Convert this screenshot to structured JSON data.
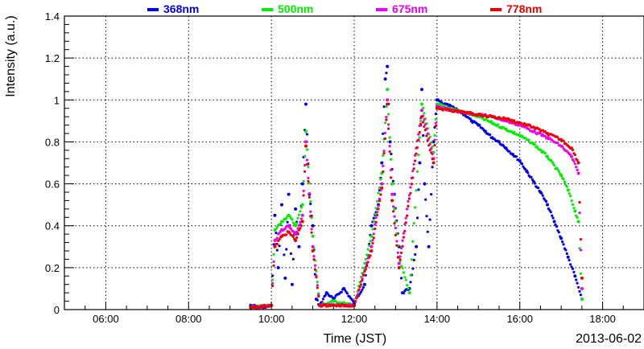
{
  "chart_data": {
    "type": "scatter",
    "xlabel": "Time (JST)",
    "ylabel": "Intensity (a.u.)",
    "date_label": "2013-06-02",
    "xlim": [
      "05:00",
      "19:00"
    ],
    "ylim": [
      0,
      1.4
    ],
    "x_ticks": [
      "06:00",
      "08:00",
      "10:00",
      "12:00",
      "14:00",
      "16:00",
      "18:00"
    ],
    "y_ticks": [
      "0",
      "0.2",
      "0.4",
      "0.6",
      "0.8",
      "1",
      "1.2",
      "1.4"
    ],
    "grid": true,
    "legend_position": "top",
    "series": [
      {
        "name": "368nm",
        "color": "#0000ee",
        "points": [
          [
            "09:30",
            0.02
          ],
          [
            "09:48",
            0.01
          ],
          [
            "10:00",
            0.02
          ],
          [
            "10:05",
            0.45
          ],
          [
            "10:10",
            0.2
          ],
          [
            "10:15",
            0.5
          ],
          [
            "10:20",
            0.15
          ],
          [
            "10:25",
            0.55
          ],
          [
            "10:30",
            0.12
          ],
          [
            "10:35",
            0.48
          ],
          [
            "10:40",
            0.3
          ],
          [
            "10:45",
            0.6
          ],
          [
            "10:50",
            0.98
          ],
          [
            "10:55",
            0.55
          ],
          [
            "11:00",
            0.4
          ],
          [
            "11:05",
            0.05
          ],
          [
            "11:10",
            0.02
          ],
          [
            "11:20",
            0.08
          ],
          [
            "11:30",
            0.05
          ],
          [
            "11:45",
            0.1
          ],
          [
            "12:00",
            0.03
          ],
          [
            "12:15",
            0.12
          ],
          [
            "12:25",
            0.4
          ],
          [
            "12:35",
            0.5
          ],
          [
            "12:40",
            0.7
          ],
          [
            "12:45",
            1.1
          ],
          [
            "12:48",
            1.16
          ],
          [
            "12:52",
            0.8
          ],
          [
            "12:58",
            0.55
          ],
          [
            "13:05",
            0.3
          ],
          [
            "13:10",
            0.08
          ],
          [
            "13:20",
            0.1
          ],
          [
            "13:30",
            0.3
          ],
          [
            "13:35",
            0.7
          ],
          [
            "13:38",
            1.05
          ],
          [
            "13:42",
            0.6
          ],
          [
            "13:48",
            0.3
          ],
          [
            "13:55",
            0.8
          ],
          [
            "14:00",
            1.0
          ],
          [
            "14:10",
            0.98
          ],
          [
            "14:20",
            0.97
          ],
          [
            "14:30",
            0.95
          ],
          [
            "14:40",
            0.93
          ],
          [
            "14:50",
            0.9
          ],
          [
            "15:00",
            0.88
          ],
          [
            "15:10",
            0.85
          ],
          [
            "15:20",
            0.82
          ],
          [
            "15:30",
            0.8
          ],
          [
            "15:40",
            0.77
          ],
          [
            "15:50",
            0.74
          ],
          [
            "16:00",
            0.71
          ],
          [
            "16:10",
            0.66
          ],
          [
            "16:20",
            0.61
          ],
          [
            "16:30",
            0.56
          ],
          [
            "16:40",
            0.5
          ],
          [
            "16:50",
            0.42
          ],
          [
            "17:00",
            0.34
          ],
          [
            "17:10",
            0.25
          ],
          [
            "17:20",
            0.16
          ],
          [
            "17:30",
            0.05
          ]
        ]
      },
      {
        "name": "500nm",
        "color": "#00ee00",
        "points": [
          [
            "09:30",
            0.01
          ],
          [
            "10:00",
            0.02
          ],
          [
            "10:05",
            0.38
          ],
          [
            "10:15",
            0.42
          ],
          [
            "10:25",
            0.45
          ],
          [
            "10:35",
            0.4
          ],
          [
            "10:45",
            0.5
          ],
          [
            "10:50",
            0.85
          ],
          [
            "11:00",
            0.35
          ],
          [
            "11:10",
            0.02
          ],
          [
            "11:30",
            0.04
          ],
          [
            "12:00",
            0.02
          ],
          [
            "12:25",
            0.35
          ],
          [
            "12:40",
            0.65
          ],
          [
            "12:48",
            1.05
          ],
          [
            "12:55",
            0.6
          ],
          [
            "13:05",
            0.25
          ],
          [
            "13:20",
            0.08
          ],
          [
            "13:38",
            0.98
          ],
          [
            "13:55",
            0.75
          ],
          [
            "14:00",
            0.98
          ],
          [
            "14:20",
            0.96
          ],
          [
            "14:40",
            0.94
          ],
          [
            "15:00",
            0.92
          ],
          [
            "15:20",
            0.89
          ],
          [
            "15:40",
            0.86
          ],
          [
            "16:00",
            0.83
          ],
          [
            "16:20",
            0.79
          ],
          [
            "16:40",
            0.73
          ],
          [
            "17:00",
            0.64
          ],
          [
            "17:10",
            0.57
          ],
          [
            "17:20",
            0.47
          ],
          [
            "17:25",
            0.42
          ],
          [
            "17:30",
            0.05
          ]
        ]
      },
      {
        "name": "675nm",
        "color": "#ee00ee",
        "points": [
          [
            "09:30",
            0.01
          ],
          [
            "10:00",
            0.02
          ],
          [
            "10:05",
            0.33
          ],
          [
            "10:15",
            0.38
          ],
          [
            "10:25",
            0.4
          ],
          [
            "10:35",
            0.36
          ],
          [
            "10:45",
            0.45
          ],
          [
            "10:50",
            0.8
          ],
          [
            "11:00",
            0.3
          ],
          [
            "11:10",
            0.02
          ],
          [
            "12:00",
            0.02
          ],
          [
            "12:25",
            0.3
          ],
          [
            "12:40",
            0.6
          ],
          [
            "12:48",
            1.0
          ],
          [
            "12:55",
            0.55
          ],
          [
            "13:05",
            0.22
          ],
          [
            "13:38",
            0.95
          ],
          [
            "13:55",
            0.72
          ],
          [
            "14:00",
            0.97
          ],
          [
            "14:20",
            0.95
          ],
          [
            "14:40",
            0.94
          ],
          [
            "15:00",
            0.93
          ],
          [
            "15:20",
            0.92
          ],
          [
            "15:40",
            0.9
          ],
          [
            "16:00",
            0.88
          ],
          [
            "16:20",
            0.85
          ],
          [
            "16:40",
            0.82
          ],
          [
            "17:00",
            0.78
          ],
          [
            "17:15",
            0.73
          ],
          [
            "17:25",
            0.65
          ],
          [
            "17:30",
            0.1
          ]
        ]
      },
      {
        "name": "778nm",
        "color": "#ee0000",
        "points": [
          [
            "09:30",
            0.01
          ],
          [
            "10:00",
            0.02
          ],
          [
            "10:05",
            0.3
          ],
          [
            "10:15",
            0.35
          ],
          [
            "10:25",
            0.37
          ],
          [
            "10:35",
            0.33
          ],
          [
            "10:45",
            0.42
          ],
          [
            "10:50",
            0.78
          ],
          [
            "11:00",
            0.28
          ],
          [
            "11:10",
            0.02
          ],
          [
            "12:00",
            0.02
          ],
          [
            "12:25",
            0.28
          ],
          [
            "12:40",
            0.58
          ],
          [
            "12:48",
            0.98
          ],
          [
            "12:55",
            0.52
          ],
          [
            "13:05",
            0.2
          ],
          [
            "13:38",
            0.92
          ],
          [
            "13:55",
            0.7
          ],
          [
            "14:00",
            0.96
          ],
          [
            "14:20",
            0.95
          ],
          [
            "14:40",
            0.94
          ],
          [
            "15:00",
            0.93
          ],
          [
            "15:20",
            0.92
          ],
          [
            "15:40",
            0.91
          ],
          [
            "16:00",
            0.89
          ],
          [
            "16:20",
            0.87
          ],
          [
            "16:40",
            0.84
          ],
          [
            "17:00",
            0.81
          ],
          [
            "17:15",
            0.77
          ],
          [
            "17:25",
            0.7
          ],
          [
            "17:30",
            0.15
          ]
        ]
      }
    ]
  }
}
